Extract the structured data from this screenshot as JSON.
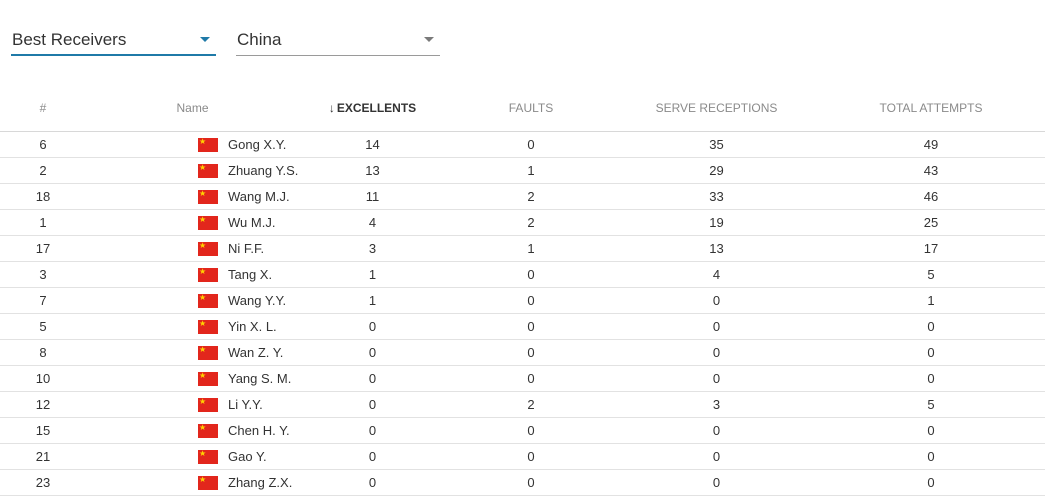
{
  "filters": {
    "stat_type": "Best Receivers",
    "country": "China"
  },
  "columns": {
    "rank": "#",
    "name": "Name",
    "excellents": "EXCELLENTS",
    "faults": "FAULTS",
    "serve_receptions": "SERVE RECEPTIONS",
    "total_attempts": "TOTAL ATTEMPTS"
  },
  "sort": {
    "column": "excellents",
    "direction": "desc",
    "icon": "arrow-down-icon"
  },
  "flag_icon": "china-flag-icon",
  "colors": {
    "accent": "#1f7aa8",
    "flag_red": "#e2261c",
    "flag_star": "#ffd400"
  },
  "rows": [
    {
      "num": "6",
      "name": "Gong X.Y.",
      "excellents": "14",
      "faults": "0",
      "serve_receptions": "35",
      "total_attempts": "49"
    },
    {
      "num": "2",
      "name": "Zhuang Y.S.",
      "excellents": "13",
      "faults": "1",
      "serve_receptions": "29",
      "total_attempts": "43"
    },
    {
      "num": "18",
      "name": "Wang M.J.",
      "excellents": "11",
      "faults": "2",
      "serve_receptions": "33",
      "total_attempts": "46"
    },
    {
      "num": "1",
      "name": "Wu M.J.",
      "excellents": "4",
      "faults": "2",
      "serve_receptions": "19",
      "total_attempts": "25"
    },
    {
      "num": "17",
      "name": "Ni F.F.",
      "excellents": "3",
      "faults": "1",
      "serve_receptions": "13",
      "total_attempts": "17"
    },
    {
      "num": "3",
      "name": "Tang X.",
      "excellents": "1",
      "faults": "0",
      "serve_receptions": "4",
      "total_attempts": "5"
    },
    {
      "num": "7",
      "name": "Wang Y.Y.",
      "excellents": "1",
      "faults": "0",
      "serve_receptions": "0",
      "total_attempts": "1"
    },
    {
      "num": "5",
      "name": "Yin X. L.",
      "excellents": "0",
      "faults": "0",
      "serve_receptions": "0",
      "total_attempts": "0"
    },
    {
      "num": "8",
      "name": "Wan Z. Y.",
      "excellents": "0",
      "faults": "0",
      "serve_receptions": "0",
      "total_attempts": "0"
    },
    {
      "num": "10",
      "name": "Yang S. M.",
      "excellents": "0",
      "faults": "0",
      "serve_receptions": "0",
      "total_attempts": "0"
    },
    {
      "num": "12",
      "name": "Li Y.Y.",
      "excellents": "0",
      "faults": "2",
      "serve_receptions": "3",
      "total_attempts": "5"
    },
    {
      "num": "15",
      "name": "Chen H. Y.",
      "excellents": "0",
      "faults": "0",
      "serve_receptions": "0",
      "total_attempts": "0"
    },
    {
      "num": "21",
      "name": "Gao Y.",
      "excellents": "0",
      "faults": "0",
      "serve_receptions": "0",
      "total_attempts": "0"
    },
    {
      "num": "23",
      "name": "Zhang Z.X.",
      "excellents": "0",
      "faults": "0",
      "serve_receptions": "0",
      "total_attempts": "0"
    }
  ]
}
